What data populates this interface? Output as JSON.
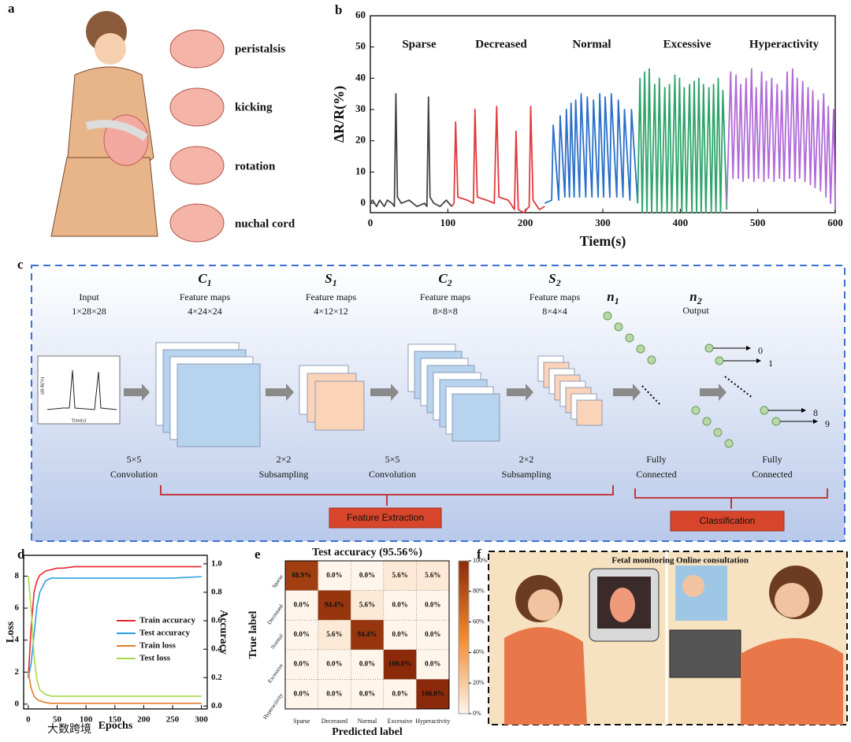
{
  "panel_labels": [
    "a",
    "b",
    "c",
    "d",
    "e",
    "f"
  ],
  "fetal_movements": [
    "peristalsis",
    "kicking",
    "rotation",
    "nuchal cord"
  ],
  "cnn": {
    "input": {
      "name": "Input",
      "size": "1×28×28"
    },
    "layers": [
      {
        "symbol": "C",
        "sub": "1",
        "name": "Feature maps",
        "size": "4×24×24"
      },
      {
        "symbol": "S",
        "sub": "1",
        "name": "Feature maps",
        "size": "4×12×12"
      },
      {
        "symbol": "C",
        "sub": "2",
        "name": "Feature maps",
        "size": "8×8×8"
      },
      {
        "symbol": "S",
        "sub": "2",
        "name": "Feature maps",
        "size": "8×4×4"
      },
      {
        "symbol": "n",
        "sub": "1"
      },
      {
        "symbol": "n",
        "sub": "2",
        "name": "Output"
      }
    ],
    "operations": [
      {
        "top": "5×5",
        "bottom": "Convolution"
      },
      {
        "top": "2×2",
        "bottom": "Subsampling"
      },
      {
        "top": "5×5",
        "bottom": "Convolution"
      },
      {
        "top": "2×2",
        "bottom": "Subsampling"
      },
      {
        "top": "Fully",
        "bottom": "Connected"
      },
      {
        "top": "Fully",
        "bottom": "Connected"
      }
    ],
    "groups": [
      "Feature Extraction",
      "Classification"
    ],
    "outputs": [
      "0",
      "1",
      "8",
      "9"
    ],
    "inset": {
      "xlabel": "Time(s)",
      "ylabel": "ΔR/R(%)"
    }
  },
  "applications": [
    "Fetal monitoring",
    "Online consultation"
  ],
  "watermark": "大数跨境",
  "chart_data": [
    {
      "type": "line",
      "xlabel": "Tiem(s)",
      "ylabel": "ΔR/R(%)",
      "xlim": [
        0,
        600
      ],
      "ylim": [
        -3,
        60
      ],
      "xticks": [
        0,
        100,
        200,
        300,
        400,
        500,
        600
      ],
      "yticks": [
        0,
        10,
        20,
        30,
        40,
        50,
        60
      ],
      "series": [
        {
          "name": "Sparse",
          "color": "#444444",
          "x": [
            0,
            3,
            8,
            12,
            18,
            22,
            28,
            31,
            33,
            35,
            40,
            50,
            60,
            70,
            73,
            75,
            77,
            82,
            90,
            98,
            105
          ],
          "values": [
            0,
            1,
            -1,
            1,
            -1,
            1,
            0,
            -1,
            35,
            2,
            0,
            1,
            -1,
            0,
            -1,
            34,
            2,
            0,
            -1,
            1,
            -1
          ]
        },
        {
          "name": "Decreased",
          "color": "#e0393e",
          "x": [
            105,
            108,
            110,
            113,
            125,
            133,
            135,
            138,
            150,
            160,
            163,
            166,
            178,
            186,
            188,
            191,
            198,
            205,
            207,
            210,
            218,
            225
          ],
          "values": [
            -1,
            0,
            26,
            2,
            1,
            0,
            30,
            2,
            1,
            0,
            31,
            2,
            1,
            -2,
            23,
            -2,
            -3,
            -1,
            31,
            1,
            -2,
            -1
          ]
        },
        {
          "name": "Normal",
          "color": "#2a6fc9",
          "x": [
            225,
            234,
            236,
            243,
            245,
            251,
            253,
            257,
            259,
            263,
            265,
            270,
            272,
            278,
            280,
            286,
            288,
            294,
            296,
            301,
            303,
            309,
            311,
            318,
            320,
            326,
            328,
            335,
            337,
            345
          ],
          "values": [
            0,
            1,
            25,
            1,
            28,
            2,
            30,
            2,
            32,
            2,
            33,
            2,
            35,
            2,
            34,
            2,
            33,
            2,
            35,
            2,
            34,
            2,
            35,
            2,
            33,
            2,
            30,
            1,
            30,
            0
          ]
        },
        {
          "name": "Excessive",
          "color": "#2ea36b",
          "x": [
            345,
            348,
            351,
            354,
            357,
            360,
            363,
            367,
            370,
            373,
            376,
            380,
            383,
            386,
            389,
            393,
            396,
            399,
            402,
            405,
            408,
            412,
            415,
            418,
            421,
            424,
            427,
            430,
            433,
            437,
            440,
            443,
            446,
            449,
            452,
            455,
            460
          ],
          "values": [
            0,
            40,
            -3,
            42,
            -3,
            43,
            -3,
            38,
            -3,
            40,
            -3,
            37,
            -3,
            38,
            -3,
            41,
            -3,
            40,
            -3,
            37,
            -3,
            38,
            -3,
            39,
            -3,
            40,
            -3,
            38,
            -3,
            37,
            -3,
            38,
            -3,
            40,
            -3,
            36,
            -2
          ]
        },
        {
          "name": "Hyperactivity",
          "color": "#b06ad8",
          "x": [
            460,
            465,
            468,
            472,
            475,
            478,
            481,
            485,
            488,
            492,
            495,
            498,
            501,
            505,
            508,
            511,
            514,
            518,
            521,
            525,
            528,
            531,
            534,
            538,
            541,
            545,
            548,
            551,
            554,
            558,
            561,
            565,
            568,
            571,
            574,
            578,
            581,
            585,
            588,
            591,
            594,
            598,
            600
          ],
          "values": [
            0,
            42,
            8,
            41,
            8,
            38,
            7,
            40,
            8,
            43,
            7,
            37,
            8,
            42,
            7,
            39,
            8,
            40,
            7,
            38,
            8,
            36,
            7,
            42,
            8,
            43,
            7,
            40,
            8,
            39,
            7,
            37,
            6,
            36,
            5,
            33,
            4,
            35,
            2,
            31,
            0,
            30,
            -2
          ]
        }
      ]
    },
    {
      "type": "line",
      "xlabel": "Epochs",
      "ylabel": "Loss",
      "y2label": "Accuracy",
      "legend": "right",
      "xlim": [
        -8,
        310
      ],
      "ylim": [
        -0.3,
        9.3
      ],
      "y2lim": [
        -0.02,
        1.06
      ],
      "xticks": [
        0,
        50,
        100,
        150,
        200,
        250,
        300
      ],
      "yticks": [
        0,
        2,
        4,
        6,
        8
      ],
      "y2ticks": [
        {
          "value": 0,
          "label": "0.0"
        },
        {
          "value": 0.2,
          "label": "0.2"
        },
        {
          "value": 0.4,
          "label": "0.4"
        },
        {
          "value": 0.6,
          "label": "0.6"
        },
        {
          "value": 0.8,
          "label": "0.8"
        },
        {
          "value": 1,
          "label": "1.0"
        }
      ],
      "x": [
        0,
        5,
        10,
        15,
        20,
        30,
        40,
        50,
        60,
        80,
        100,
        150,
        200,
        250,
        300
      ],
      "series": [
        {
          "name": "Train accuracy",
          "color": "#e8262b",
          "axis": "y2",
          "values": [
            0.2,
            0.55,
            0.8,
            0.88,
            0.92,
            0.95,
            0.96,
            0.97,
            0.97,
            0.98,
            0.98,
            0.98,
            0.98,
            0.98,
            0.98
          ]
        },
        {
          "name": "Test accuracy",
          "color": "#2d9fe0",
          "axis": "y2",
          "values": [
            0.2,
            0.3,
            0.5,
            0.7,
            0.8,
            0.88,
            0.9,
            0.9,
            0.9,
            0.9,
            0.9,
            0.9,
            0.9,
            0.9,
            0.91
          ]
        },
        {
          "name": "Train loss",
          "color": "#e07b2a",
          "values": [
            2,
            1,
            0.5,
            0.3,
            0.2,
            0.1,
            0.05,
            0.05,
            0.05,
            0.05,
            0.05,
            0.05,
            0.05,
            0.05,
            0.05
          ]
        },
        {
          "name": "Test loss",
          "color": "#a8d84a",
          "values": [
            8,
            6,
            3,
            1.5,
            0.9,
            0.6,
            0.5,
            0.5,
            0.5,
            0.5,
            0.5,
            0.5,
            0.5,
            0.5,
            0.5
          ]
        }
      ]
    },
    {
      "type": "heatmap",
      "title": "Test accuracy (95.56%)",
      "xlabel": "Predicted label",
      "ylabel": "True label",
      "x_categories": [
        "Sparse",
        "Decreased",
        "Normal",
        "Excessive",
        "Hyperactivity"
      ],
      "y_categories": [
        "Sparse",
        "Decreased",
        "Normal",
        "Excessive",
        "Hyperactivity"
      ],
      "values": [
        [
          88.9,
          0,
          0,
          5.6,
          5.6
        ],
        [
          0,
          94.4,
          5.6,
          0,
          0
        ],
        [
          0,
          5.6,
          94.4,
          0,
          0
        ],
        [
          0,
          0,
          0,
          100,
          0
        ],
        [
          0,
          0,
          0,
          0,
          100
        ]
      ],
      "value_labels": [
        [
          "88.9%",
          "0.0%",
          "0.0%",
          "5.6%",
          "5.6%"
        ],
        [
          "0.0%",
          "94.4%",
          "5.6%",
          "0.0%",
          "0.0%"
        ],
        [
          "0.0%",
          "5.6%",
          "94.4%",
          "0.0%",
          "0.0%"
        ],
        [
          "0.0%",
          "0.0%",
          "0.0%",
          "100.0%",
          "0.0%"
        ],
        [
          "0.0%",
          "0.0%",
          "0.0%",
          "0.0%",
          "100.0%"
        ]
      ],
      "colors": [
        "#fff5eb",
        "#f0892f",
        "#8b2a0a"
      ],
      "clim": [
        0,
        100
      ],
      "colorbar_ticks": [
        {
          "value": 0,
          "label": "0%"
        },
        {
          "value": 20,
          "label": "20%"
        },
        {
          "value": 40,
          "label": "40%"
        },
        {
          "value": 60,
          "label": "60%"
        },
        {
          "value": 80,
          "label": "80%"
        },
        {
          "value": 100,
          "label": "100%"
        }
      ]
    }
  ]
}
